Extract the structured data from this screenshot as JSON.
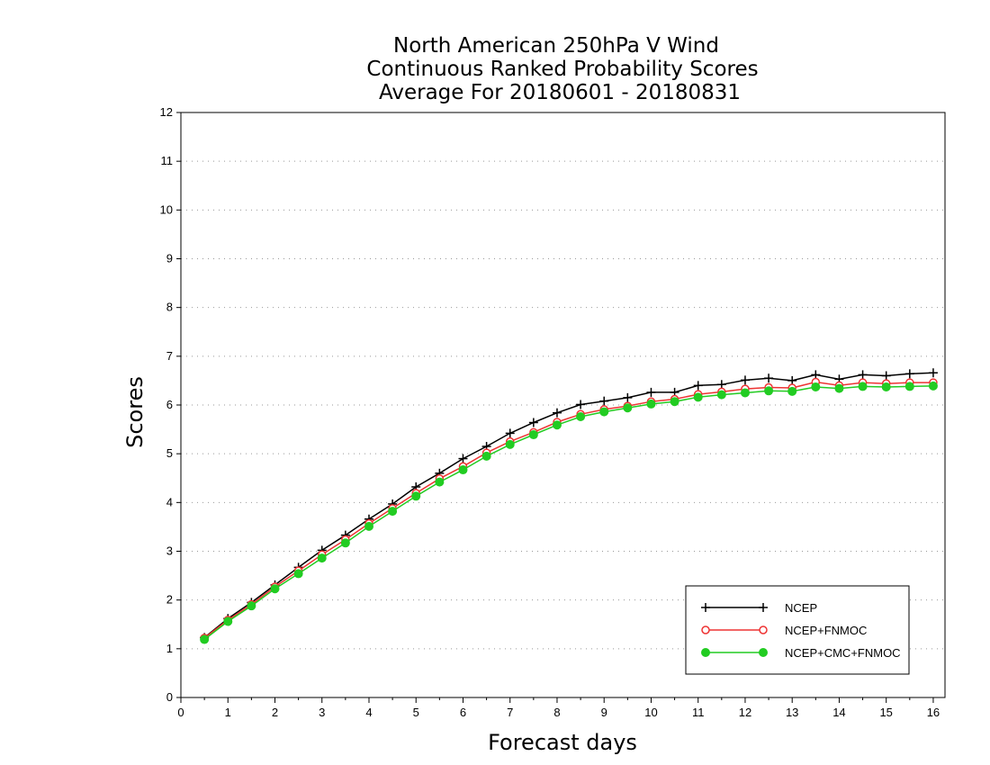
{
  "chart_data": {
    "type": "line",
    "title": [
      "North American 250hPa V Wind",
      "Continuous Ranked Probability Scores",
      "Average For 20180601 - 20180831"
    ],
    "xlabel": "Forecast days",
    "ylabel": "Scores",
    "xlim": [
      0,
      16.25
    ],
    "ylim": [
      0,
      12
    ],
    "x_ticks": [
      0,
      1,
      2,
      3,
      4,
      5,
      6,
      7,
      8,
      9,
      10,
      11,
      12,
      13,
      14,
      15,
      16
    ],
    "y_ticks": [
      0,
      1,
      2,
      3,
      4,
      5,
      6,
      7,
      8,
      9,
      10,
      11,
      12
    ],
    "grid": "horizontal-dotted",
    "legend_position": "bottom-right",
    "x": [
      0.5,
      1,
      1.5,
      2,
      2.5,
      3,
      3.5,
      4,
      4.5,
      5,
      5.5,
      6,
      6.5,
      7,
      7.5,
      8,
      8.5,
      9,
      9.5,
      10,
      10.5,
      11,
      11.5,
      12,
      12.5,
      13,
      13.5,
      14,
      14.5,
      15,
      15.5,
      16
    ],
    "series": [
      {
        "name": "NCEP",
        "color": "#000000",
        "marker": "plus",
        "values": [
          1.23,
          1.62,
          1.95,
          2.31,
          2.67,
          3.02,
          3.33,
          3.66,
          3.97,
          4.32,
          4.6,
          4.9,
          5.15,
          5.42,
          5.64,
          5.84,
          6.01,
          6.08,
          6.15,
          6.26,
          6.26,
          6.4,
          6.42,
          6.51,
          6.55,
          6.5,
          6.62,
          6.53,
          6.62,
          6.6,
          6.64,
          6.66
        ]
      },
      {
        "name": "NCEP+FNMOC",
        "color": "#ee3333",
        "marker": "open-circle",
        "values": [
          1.22,
          1.59,
          1.91,
          2.27,
          2.6,
          2.93,
          3.24,
          3.57,
          3.88,
          4.19,
          4.49,
          4.74,
          5.02,
          5.25,
          5.44,
          5.65,
          5.81,
          5.91,
          5.98,
          6.07,
          6.12,
          6.22,
          6.27,
          6.33,
          6.36,
          6.35,
          6.47,
          6.4,
          6.46,
          6.44,
          6.46,
          6.46
        ]
      },
      {
        "name": "NCEP+CMC+FNMOC",
        "color": "#22cc22",
        "marker": "filled-circle",
        "values": [
          1.19,
          1.56,
          1.88,
          2.23,
          2.54,
          2.86,
          3.17,
          3.51,
          3.82,
          4.13,
          4.42,
          4.67,
          4.95,
          5.19,
          5.39,
          5.59,
          5.76,
          5.86,
          5.94,
          6.02,
          6.07,
          6.16,
          6.21,
          6.25,
          6.29,
          6.28,
          6.37,
          6.34,
          6.38,
          6.37,
          6.38,
          6.39
        ]
      }
    ]
  }
}
